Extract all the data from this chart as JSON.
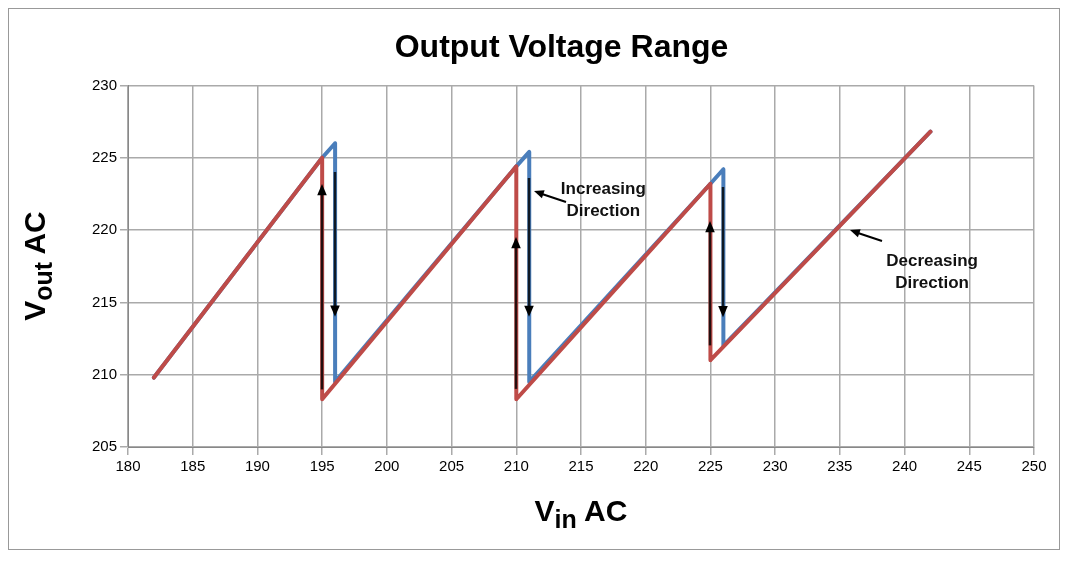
{
  "chart_data": {
    "type": "line",
    "title": "Output Voltage Range",
    "xlabel": "V$_{in}$ AC",
    "ylabel": "V$_{out}$ AC",
    "xlim": [
      180,
      250
    ],
    "xticks": [
      180,
      185,
      190,
      195,
      200,
      205,
      210,
      215,
      220,
      225,
      230,
      235,
      240,
      245,
      250
    ],
    "ylim": [
      205,
      230
    ],
    "yticks": [
      205,
      210,
      215,
      220,
      225,
      230
    ],
    "grid": true,
    "legend": false,
    "marker": "none",
    "line_style": "solid",
    "series": [
      {
        "color": "#4a7ebb",
        "x": [
          182,
          195,
          196,
          196,
          210,
          211,
          211,
          225,
          226,
          226,
          242
        ],
        "values": [
          209.8,
          225,
          226,
          209.5,
          224.4,
          225.4,
          209.5,
          223.2,
          224.2,
          212,
          226.8
        ]
      },
      {
        "color": "#be4b48",
        "x": [
          182,
          195,
          195,
          210,
          210,
          225,
          225,
          242
        ],
        "values": [
          209.8,
          225,
          208.3,
          224.4,
          208.3,
          223.2,
          211,
          226.8
        ]
      }
    ],
    "annotations": [
      "Increasing Direction",
      "Decreasing Direction"
    ]
  }
}
